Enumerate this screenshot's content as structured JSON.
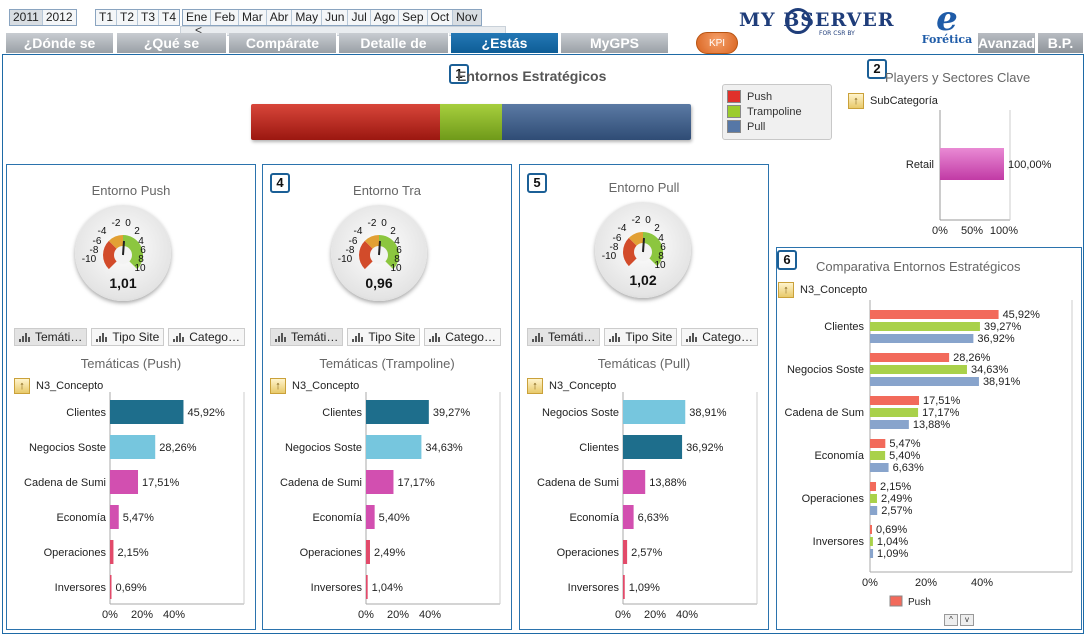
{
  "filters": {
    "years": [
      {
        "label": "2011",
        "selected": true
      },
      {
        "label": "2012",
        "selected": false
      }
    ],
    "quarters": [
      "T1",
      "T2",
      "T3",
      "T4"
    ],
    "months": [
      {
        "label": "Ene",
        "selected": false
      },
      {
        "label": "Feb",
        "selected": false
      },
      {
        "label": "Mar",
        "selected": false
      },
      {
        "label": "Abr",
        "selected": false
      },
      {
        "label": "May",
        "selected": false
      },
      {
        "label": "Jun",
        "selected": false
      },
      {
        "label": "Jul",
        "selected": false
      },
      {
        "label": "Ago",
        "selected": false
      },
      {
        "label": "Sep",
        "selected": false
      },
      {
        "label": "Oct",
        "selected": false
      },
      {
        "label": "Nov",
        "selected": true
      }
    ],
    "scroll_left": "<"
  },
  "tabs": [
    {
      "label": "¿Dónde se",
      "active": false
    },
    {
      "label": "¿Qué se",
      "active": false
    },
    {
      "label": "Compárate",
      "active": false
    },
    {
      "label": "Detalle de",
      "active": false
    },
    {
      "label": "¿Estás",
      "active": true
    },
    {
      "label": "MyGPS",
      "active": false
    },
    {
      "label": "Avanzad",
      "active": false
    },
    {
      "label": "B.P.",
      "active": false
    }
  ],
  "kpi_label": "KPI",
  "logos": {
    "myobserver": "MY  BSERVER",
    "myobserver_sub": "FOR CSR BY",
    "foretica_letter": "e",
    "foretica": "Forética"
  },
  "panel1": {
    "badge": "1",
    "title": "Entornos Estratégicos",
    "legend": [
      {
        "label": "Push",
        "color": "#e0312b"
      },
      {
        "label": "Trampoline",
        "color": "#9ccc2c"
      },
      {
        "label": "Pull",
        "color": "#5677a6"
      }
    ],
    "segments": [
      43,
      14,
      43
    ]
  },
  "panel2": {
    "badge": "2",
    "title": "Players y Sectores Clave",
    "drill": "SubCategoría",
    "bar_label": "Retail",
    "bar_value": "100,00%",
    "axis": [
      "0%",
      "50%",
      "100%"
    ]
  },
  "gauges": [
    {
      "title": "Entorno Push",
      "value": "1,01",
      "badge": ""
    },
    {
      "title": "Entorno Tra",
      "value": "0,96",
      "badge": "4"
    },
    {
      "title": "Entorno Pull",
      "value": "1,02",
      "badge": "5"
    }
  ],
  "gauge_ticks": [
    "-2",
    "0",
    "2",
    "-4",
    "4",
    "-6",
    "6",
    "-8",
    "8",
    "-10",
    "10"
  ],
  "subtabs": [
    {
      "label": "Temáti…",
      "selected": true
    },
    {
      "label": "Tipo Site",
      "selected": false
    },
    {
      "label": "Catego…",
      "selected": false
    }
  ],
  "panel6": {
    "badge": "6",
    "title": "Comparativa Entornos Estratégicos",
    "drill": "N3_Concepto",
    "legend_label": "Push",
    "nav_up": "^",
    "nav_down": "v"
  },
  "chart_data": [
    {
      "type": "bar",
      "title": "Temáticas (Push)",
      "drill": "N3_Concepto",
      "orientation": "horizontal",
      "categories": [
        "Clientes",
        "Negocios Soste",
        "Cadena de Sumi",
        "Economía",
        "Operaciones",
        "Inversores"
      ],
      "values": [
        45.92,
        28.26,
        17.51,
        5.47,
        2.15,
        0.69
      ],
      "value_labels": [
        "45,92%",
        "28,26%",
        "17,51%",
        "5,47%",
        "2,15%",
        "0,69%"
      ],
      "bar_colors": [
        "#1e6e8c",
        "#76c6de",
        "#d24fb0",
        "#d24fb0",
        "#e24a6a",
        "#e24a6a"
      ],
      "xticks": [
        "0%",
        "20%",
        "40%"
      ],
      "xlim": [
        0,
        45
      ]
    },
    {
      "type": "bar",
      "title": "Temáticas (Trampoline)",
      "drill": "N3_Concepto",
      "orientation": "horizontal",
      "categories": [
        "Clientes",
        "Negocios Soste",
        "Cadena de Sumi",
        "Economía",
        "Operaciones",
        "Inversores"
      ],
      "values": [
        39.27,
        34.63,
        17.17,
        5.4,
        2.49,
        1.04
      ],
      "value_labels": [
        "39,27%",
        "34,63%",
        "17,17%",
        "5,40%",
        "2,49%",
        "1,04%"
      ],
      "bar_colors": [
        "#1e6e8c",
        "#76c6de",
        "#d24fb0",
        "#d24fb0",
        "#e24a6a",
        "#e24a6a"
      ],
      "xticks": [
        "0%",
        "20%",
        "40%"
      ],
      "xlim": [
        0,
        45
      ]
    },
    {
      "type": "bar",
      "title": "Temáticas (Pull)",
      "drill": "N3_Concepto",
      "orientation": "horizontal",
      "categories": [
        "Negocios Soste",
        "Clientes",
        "Cadena de Sumi",
        "Economía",
        "Operaciones",
        "Inversores"
      ],
      "values": [
        38.91,
        36.92,
        13.88,
        6.63,
        2.57,
        1.09
      ],
      "value_labels": [
        "38,91%",
        "36,92%",
        "13,88%",
        "6,63%",
        "2,57%",
        "1,09%"
      ],
      "bar_colors": [
        "#76c6de",
        "#1e6e8c",
        "#d24fb0",
        "#d24fb0",
        "#e24a6a",
        "#e24a6a"
      ],
      "xticks": [
        "0%",
        "20%",
        "40%"
      ],
      "xlim": [
        0,
        45
      ]
    },
    {
      "type": "bar",
      "title": "Comparativa Entornos Estratégicos",
      "orientation": "horizontal",
      "categories": [
        "Clientes",
        "Negocios Soste",
        "Cadena de Sum",
        "Economía",
        "Operaciones",
        "Inversores"
      ],
      "series": [
        {
          "name": "Push",
          "color": "#f26a5b",
          "values": [
            45.92,
            28.26,
            17.51,
            5.47,
            2.15,
            0.69
          ],
          "labels": [
            "45,92%",
            "28,26%",
            "17,51%",
            "5,47%",
            "2,15%",
            "0,69%"
          ]
        },
        {
          "color": "#a9d14a",
          "values": [
            39.27,
            34.63,
            17.17,
            5.4,
            2.49,
            1.04
          ],
          "labels": [
            "39,27%",
            "34,63%",
            "17,17%",
            "5,40%",
            "2,49%",
            "1,04%"
          ]
        },
        {
          "color": "#88a4cc",
          "values": [
            36.92,
            38.91,
            13.88,
            6.63,
            2.57,
            1.09
          ],
          "labels": [
            "36,92%",
            "38,91%",
            "13,88%",
            "6,63%",
            "2,57%",
            "1,09%"
          ]
        }
      ],
      "xticks": [
        "0%",
        "20%",
        "40%"
      ],
      "xlim": [
        0,
        45
      ]
    },
    {
      "type": "bar",
      "title": "Players y Sectores Clave",
      "orientation": "horizontal",
      "categories": [
        "Retail"
      ],
      "values": [
        100.0
      ],
      "value_labels": [
        "100,00%"
      ],
      "xticks": [
        "0%",
        "50%",
        "100%"
      ],
      "xlim": [
        0,
        100
      ]
    }
  ]
}
